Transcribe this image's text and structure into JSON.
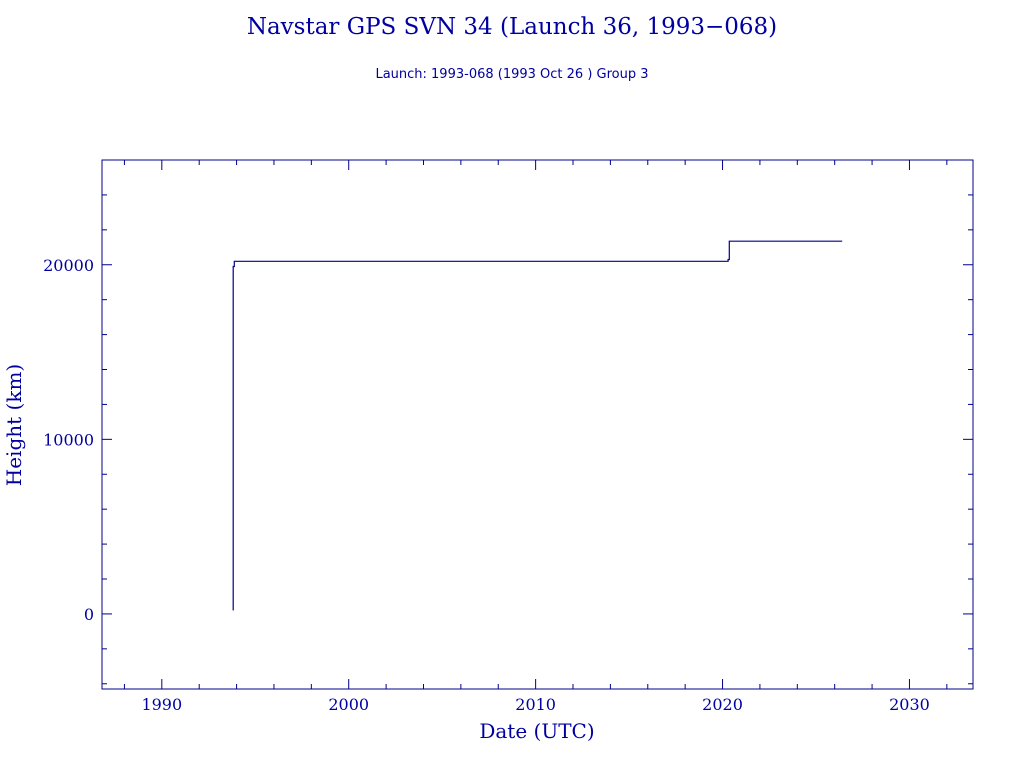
{
  "chart_data": {
    "type": "line",
    "title": "Navstar GPS SVN 34 (Launch 36, 1993−068)",
    "subtitle": "Launch: 1993-068  (1993 Oct 26 )  Group 3",
    "xlabel": "Date (UTC)",
    "ylabel": "Height (km)",
    "xlim": [
      1986.8,
      2033.4
    ],
    "ylim": [
      -4300,
      26000
    ],
    "x_ticks": [
      1990,
      2000,
      2010,
      2020,
      2030
    ],
    "y_ticks": [
      0,
      10000,
      20000
    ],
    "grid": false,
    "color": "#00008b",
    "series": [
      {
        "x": [
          1993.82,
          1993.82,
          1993.88,
          1993.88,
          2020.3,
          2020.3,
          2020.36,
          2020.36,
          2026.4
        ],
        "y": [
          200,
          19900,
          19900,
          20200,
          20200,
          20300,
          20300,
          21350,
          21350
        ]
      }
    ]
  }
}
